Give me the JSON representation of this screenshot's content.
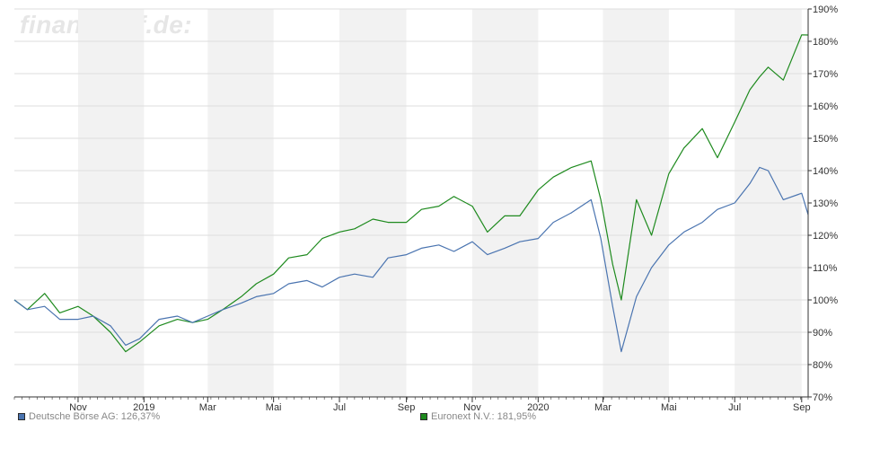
{
  "watermark": "finanztreff.de:",
  "colors": {
    "series_1": "#4a74b0",
    "series_2": "#1e8a1e",
    "band": "#f2f2f2",
    "grid": "#dddddd",
    "axis": "#333333"
  },
  "chart_data": {
    "type": "line",
    "title": "",
    "xlabel": "",
    "ylabel": "",
    "ylim": [
      70,
      190
    ],
    "y_ticks": [
      70,
      80,
      90,
      100,
      110,
      120,
      130,
      140,
      150,
      160,
      170,
      180,
      190
    ],
    "y_tick_labels": [
      "70%",
      "80%",
      "90%",
      "100%",
      "110%",
      "120%",
      "130%",
      "140%",
      "150%",
      "160%",
      "170%",
      "180%",
      "190%"
    ],
    "x_range": [
      "2018-09-03",
      "2020-09-07"
    ],
    "x_ticks": [
      {
        "date": "2018-11-01",
        "label": "Nov"
      },
      {
        "date": "2019-01-01",
        "label": "2019"
      },
      {
        "date": "2019-03-01",
        "label": "Mar"
      },
      {
        "date": "2019-05-01",
        "label": "Mai"
      },
      {
        "date": "2019-07-01",
        "label": "Jul"
      },
      {
        "date": "2019-09-01",
        "label": "Sep"
      },
      {
        "date": "2019-11-01",
        "label": "Nov"
      },
      {
        "date": "2020-01-01",
        "label": "2020"
      },
      {
        "date": "2020-03-01",
        "label": "Mar"
      },
      {
        "date": "2020-05-01",
        "label": "Mai"
      },
      {
        "date": "2020-07-01",
        "label": "Jul"
      },
      {
        "date": "2020-09-01",
        "label": "Sep"
      }
    ],
    "legend_position": "bottom",
    "series": [
      {
        "name": "Deutsche Börse AG: 126,37%",
        "x": [
          "2018-09-03",
          "2018-09-15",
          "2018-10-01",
          "2018-10-15",
          "2018-11-01",
          "2018-11-15",
          "2018-12-01",
          "2018-12-15",
          "2018-12-28",
          "2019-01-15",
          "2019-02-01",
          "2019-02-15",
          "2019-03-01",
          "2019-03-15",
          "2019-04-01",
          "2019-04-15",
          "2019-05-01",
          "2019-05-15",
          "2019-06-01",
          "2019-06-15",
          "2019-07-01",
          "2019-07-15",
          "2019-08-01",
          "2019-08-15",
          "2019-09-01",
          "2019-09-15",
          "2019-10-01",
          "2019-10-15",
          "2019-11-01",
          "2019-11-15",
          "2019-12-01",
          "2019-12-15",
          "2020-01-01",
          "2020-01-15",
          "2020-02-01",
          "2020-02-19",
          "2020-02-28",
          "2020-03-10",
          "2020-03-18",
          "2020-04-01",
          "2020-04-15",
          "2020-05-01",
          "2020-05-15",
          "2020-06-01",
          "2020-06-15",
          "2020-07-01",
          "2020-07-15",
          "2020-07-24",
          "2020-08-01",
          "2020-08-15",
          "2020-09-01",
          "2020-09-07"
        ],
        "values": [
          100,
          97,
          98,
          94,
          94,
          95,
          92,
          86,
          88,
          94,
          95,
          93,
          95,
          97,
          99,
          101,
          102,
          105,
          106,
          104,
          107,
          108,
          107,
          113,
          114,
          116,
          117,
          115,
          118,
          114,
          116,
          118,
          119,
          124,
          127,
          131,
          119,
          98,
          84,
          101,
          110,
          117,
          121,
          124,
          128,
          130,
          136,
          141,
          140,
          131,
          133,
          126.37
        ]
      },
      {
        "name": "Euronext N.V.: 181,95%",
        "x": [
          "2018-09-03",
          "2018-09-15",
          "2018-10-01",
          "2018-10-15",
          "2018-11-01",
          "2018-11-15",
          "2018-12-01",
          "2018-12-15",
          "2018-12-28",
          "2019-01-15",
          "2019-02-01",
          "2019-02-15",
          "2019-03-01",
          "2019-03-15",
          "2019-04-01",
          "2019-04-15",
          "2019-05-01",
          "2019-05-15",
          "2019-06-01",
          "2019-06-15",
          "2019-07-01",
          "2019-07-15",
          "2019-08-01",
          "2019-08-15",
          "2019-09-01",
          "2019-09-15",
          "2019-10-01",
          "2019-10-15",
          "2019-11-01",
          "2019-11-15",
          "2019-12-01",
          "2019-12-15",
          "2020-01-01",
          "2020-01-15",
          "2020-02-01",
          "2020-02-19",
          "2020-02-28",
          "2020-03-10",
          "2020-03-18",
          "2020-04-01",
          "2020-04-15",
          "2020-05-01",
          "2020-05-15",
          "2020-06-01",
          "2020-06-15",
          "2020-07-01",
          "2020-07-15",
          "2020-07-24",
          "2020-08-01",
          "2020-08-15",
          "2020-09-01",
          "2020-09-07"
        ],
        "values": [
          100,
          97,
          102,
          96,
          98,
          95,
          90,
          84,
          87,
          92,
          94,
          93,
          94,
          97,
          101,
          105,
          108,
          113,
          114,
          119,
          121,
          122,
          125,
          124,
          124,
          128,
          129,
          132,
          129,
          121,
          126,
          126,
          134,
          138,
          141,
          143,
          131,
          111,
          100,
          131,
          120,
          139,
          147,
          153,
          144,
          155,
          165,
          169,
          172,
          168,
          182,
          181.95
        ]
      }
    ]
  }
}
